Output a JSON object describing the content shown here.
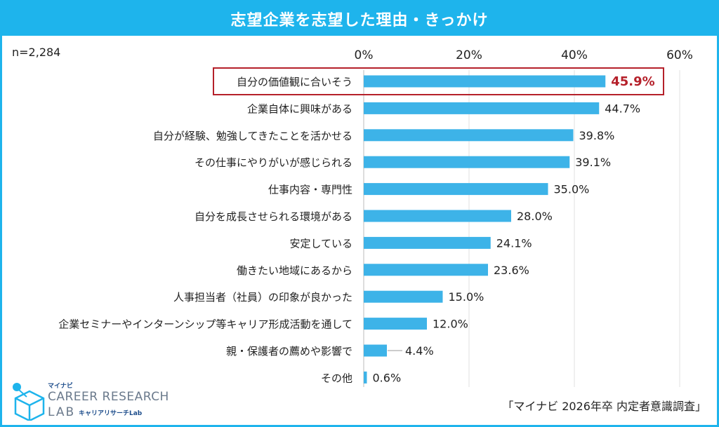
{
  "title": "志望企業を志望した理由・きっかけ",
  "sample_size": "n=2,284",
  "source": "「マイナビ 2026年卒 内定者意識調査」",
  "logo": {
    "small": "マイナビ",
    "main": "CAREER RESEARCH",
    "lab": "LAB",
    "sub": "キャリアリサーチLab"
  },
  "colors": {
    "bar": "#3db3e8",
    "accent": "#1eb4ec",
    "highlight": "#b5202a"
  },
  "chart_data": {
    "type": "bar",
    "orientation": "horizontal",
    "title": "志望企業を志望した理由・きっかけ",
    "categories": [
      "自分の価値観に合いそう",
      "企業自体に興味がある",
      "自分が経験、勉強してきたことを活かせる",
      "その仕事にやりがいが感じられる",
      "仕事内容・専門性",
      "自分を成長させられる環境がある",
      "安定している",
      "働きたい地域にあるから",
      "人事担当者（社員）の印象が良かった",
      "企業セミナーやインターンシップ等キャリア形成活動を通して",
      "親・保護者の薦めや影響で",
      "その他"
    ],
    "values": [
      45.9,
      44.7,
      39.8,
      39.1,
      35.0,
      28.0,
      24.1,
      23.6,
      15.0,
      12.0,
      4.4,
      0.6
    ],
    "value_labels": [
      "45.9%",
      "44.7%",
      "39.8%",
      "39.1%",
      "35.0%",
      "28.0%",
      "24.1%",
      "23.6%",
      "15.0%",
      "12.0%",
      "4.4%",
      "0.6%"
    ],
    "highlighted_index": 0,
    "xlim": [
      0,
      60
    ],
    "ticks": [
      0,
      20,
      40,
      60
    ],
    "tick_labels": [
      "0%",
      "20%",
      "40%",
      "60%"
    ],
    "grid": true
  }
}
